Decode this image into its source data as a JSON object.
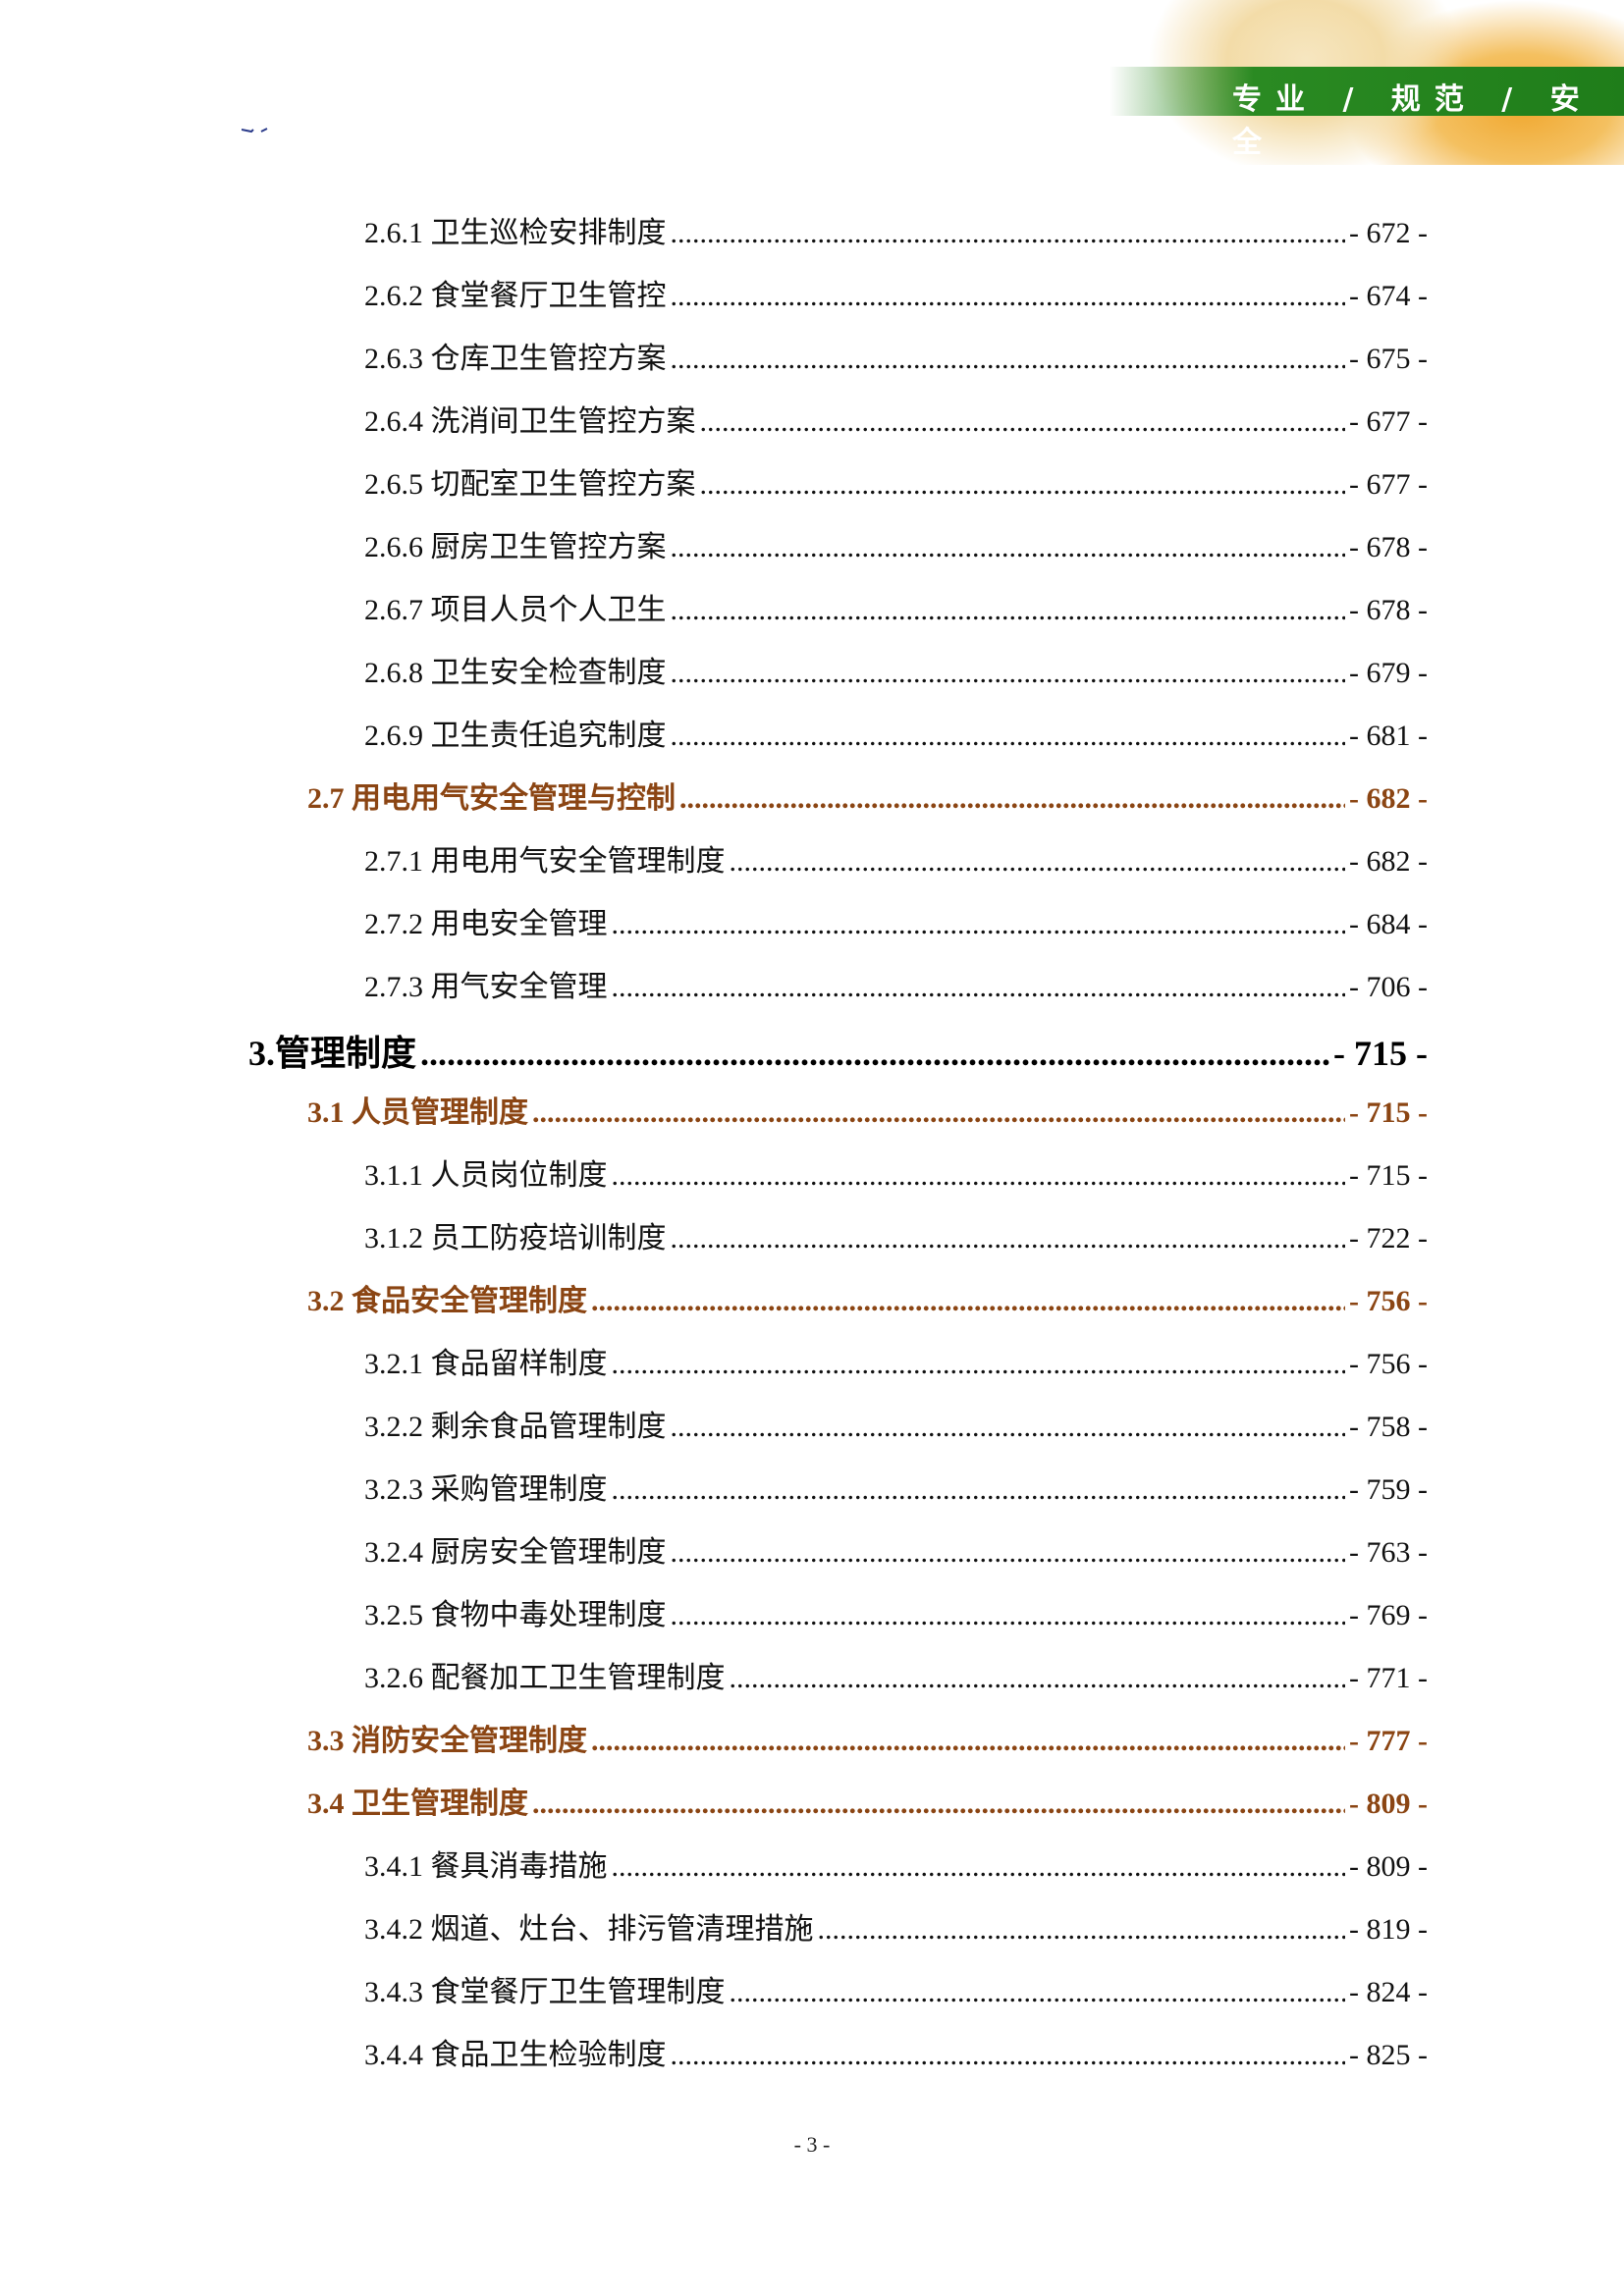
{
  "header": {
    "slogan": "专业 / 规范 / 安全"
  },
  "colors": {
    "section": "#8b4513",
    "banner_green": "#1f7d1a",
    "text": "#111111"
  },
  "toc": [
    {
      "level": 3,
      "title": "2.6.1 卫生巡检安排制度",
      "page": "- 672 -"
    },
    {
      "level": 3,
      "title": "2.6.2 食堂餐厅卫生管控",
      "page": "- 674 -"
    },
    {
      "level": 3,
      "title": "2.6.3 仓库卫生管控方案",
      "page": "- 675 -"
    },
    {
      "level": 3,
      "title": "2.6.4 洗消间卫生管控方案",
      "page": "- 677 -"
    },
    {
      "level": 3,
      "title": "2.6.5 切配室卫生管控方案",
      "page": "- 677 -"
    },
    {
      "level": 3,
      "title": "2.6.6 厨房卫生管控方案",
      "page": "- 678 -"
    },
    {
      "level": 3,
      "title": "2.6.7 项目人员个人卫生",
      "page": "- 678 -"
    },
    {
      "level": 3,
      "title": "2.6.8 卫生安全检查制度",
      "page": "- 679 -"
    },
    {
      "level": 3,
      "title": "2.6.9 卫生责任追究制度",
      "page": "- 681 -"
    },
    {
      "level": 2,
      "title": "2.7 用电用气安全管理与控制",
      "page": "- 682 -"
    },
    {
      "level": 3,
      "title": "2.7.1 用电用气安全管理制度",
      "page": "- 682 -"
    },
    {
      "level": 3,
      "title": "2.7.2 用电安全管理",
      "page": "- 684 -"
    },
    {
      "level": 3,
      "title": "2.7.3 用气安全管理",
      "page": "- 706 -"
    },
    {
      "level": 1,
      "title": "3.管理制度",
      "page": "- 715 -"
    },
    {
      "level": 2,
      "title": "3.1 人员管理制度",
      "page": "- 715 -"
    },
    {
      "level": 3,
      "title": "3.1.1 人员岗位制度",
      "page": "- 715 -"
    },
    {
      "level": 3,
      "title": "3.1.2 员工防疫培训制度",
      "page": "- 722 -"
    },
    {
      "level": 2,
      "title": "3.2 食品安全管理制度",
      "page": "- 756 -"
    },
    {
      "level": 3,
      "title": "3.2.1 食品留样制度",
      "page": "- 756 -"
    },
    {
      "level": 3,
      "title": "3.2.2 剩余食品管理制度",
      "page": "- 758 -"
    },
    {
      "level": 3,
      "title": "3.2.3 采购管理制度",
      "page": "- 759 -"
    },
    {
      "level": 3,
      "title": "3.2.4 厨房安全管理制度",
      "page": "- 763 -"
    },
    {
      "level": 3,
      "title": "3.2.5 食物中毒处理制度",
      "page": "- 769 -"
    },
    {
      "level": 3,
      "title": "3.2.6 配餐加工卫生管理制度",
      "page": "- 771 -"
    },
    {
      "level": 2,
      "title": "3.3 消防安全管理制度",
      "page": "- 777 -"
    },
    {
      "level": 2,
      "title": "3.4 卫生管理制度",
      "page": "- 809 -"
    },
    {
      "level": 3,
      "title": "3.4.1 餐具消毒措施",
      "page": "- 809 -"
    },
    {
      "level": 3,
      "title": "3.4.2 烟道、灶台、排污管清理措施",
      "page": "- 819 -"
    },
    {
      "level": 3,
      "title": "3.4.3 食堂餐厅卫生管理制度",
      "page": "- 824 -"
    },
    {
      "level": 3,
      "title": "3.4.4 食品卫生检验制度",
      "page": "- 825 -"
    }
  ],
  "footer": {
    "page_number": "- 3 -"
  }
}
